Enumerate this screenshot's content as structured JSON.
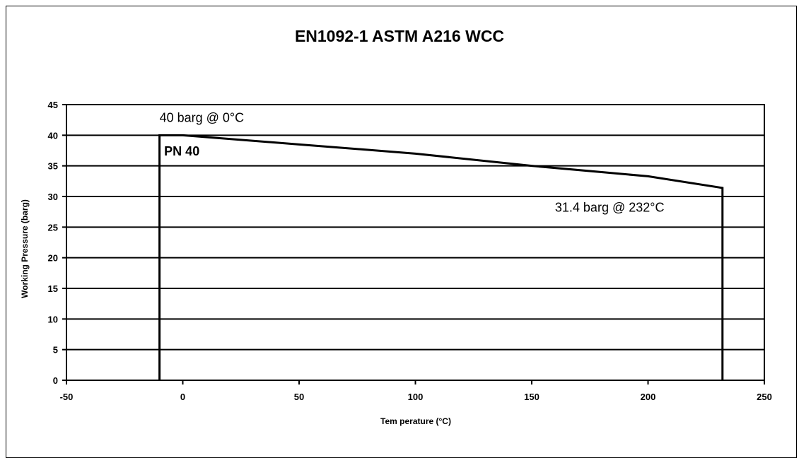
{
  "chart_data": {
    "type": "line",
    "title": "EN1092-1 ASTM A216 WCC",
    "xlabel": "Tem perature (°C)",
    "ylabel": "Working Pressure (barg)",
    "xlim": [
      -50,
      250
    ],
    "ylim": [
      0,
      45
    ],
    "x_ticks": [
      "-50",
      "0",
      "50",
      "100",
      "150",
      "200",
      "250"
    ],
    "y_ticks": [
      "0",
      "5",
      "10",
      "15",
      "20",
      "25",
      "30",
      "35",
      "40",
      "45"
    ],
    "grid": "horizontal",
    "legend": "none",
    "series": [
      {
        "points": [
          {
            "x": -10,
            "y": 0
          },
          {
            "x": -10,
            "y": 40
          },
          {
            "x": 0,
            "y": 40
          },
          {
            "x": 50,
            "y": 38.5
          },
          {
            "x": 100,
            "y": 37
          },
          {
            "x": 150,
            "y": 35
          },
          {
            "x": 200,
            "y": 33.3
          },
          {
            "x": 232,
            "y": 31.4
          },
          {
            "x": 232,
            "y": 0
          }
        ]
      }
    ],
    "annotations": [
      {
        "text": "40 barg @ 0°C",
        "x": -10,
        "y": 42.2,
        "bold": false
      },
      {
        "text": "PN 40",
        "x": -8,
        "y": 36.7,
        "bold": true
      },
      {
        "text": "31.4 barg @ 232°C",
        "x": 160,
        "y": 27.5,
        "bold": false
      }
    ],
    "colors": {
      "line": "#000000",
      "grid": "#000000",
      "background": "#ffffff"
    }
  }
}
